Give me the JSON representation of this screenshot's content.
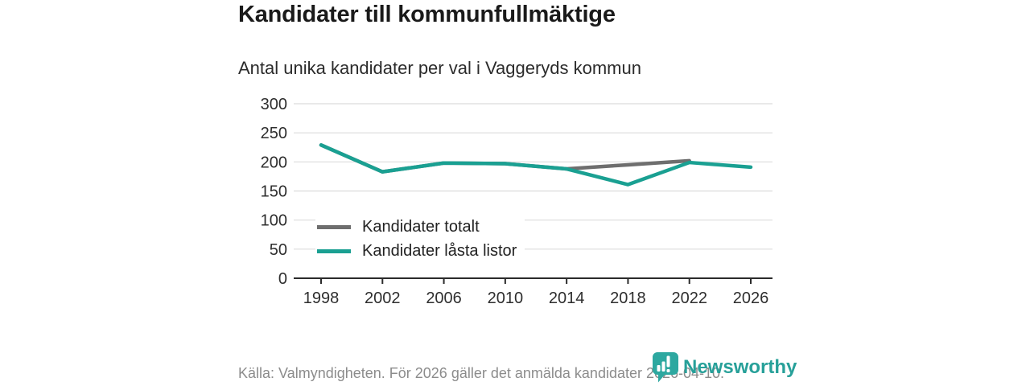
{
  "header": {
    "title": "Kandidater till kommunfullmäktige",
    "subtitle": "Antal unika kandidater per val i Vaggeryds kommun"
  },
  "chart_data": {
    "type": "line",
    "title": "Kandidater till kommunfullmäktige",
    "subtitle": "Antal unika kandidater per val i Vaggeryds kommun",
    "x": [
      1998,
      2002,
      2006,
      2010,
      2014,
      2018,
      2022,
      2026
    ],
    "series": [
      {
        "name": "Kandidater totalt",
        "color": "#6e6e6e",
        "values": [
          229,
          183,
          198,
          197,
          188,
          195,
          202,
          null
        ]
      },
      {
        "name": "Kandidater låsta listor",
        "color": "#1aa092",
        "values": [
          229,
          183,
          198,
          197,
          188,
          161,
          199,
          191
        ]
      }
    ],
    "ylim": [
      0,
      300
    ],
    "ytick_step": 50,
    "grid": "horizontal",
    "legend_position": "inside-bottom-left",
    "grid_color": "#dcdcdc",
    "axis_color": "#2b2b2b",
    "tick_label_color": "#2e2e2e"
  },
  "footer": {
    "source": "Källa: Valmyndigheten. För 2026 gäller det anmälda kandidater 2026-04-10."
  },
  "logo": {
    "text": "Newsworthy",
    "icon": "speech-bubble-bar-chart-icon",
    "icon_color": "#2da8a0",
    "text_color": "#27a099"
  }
}
